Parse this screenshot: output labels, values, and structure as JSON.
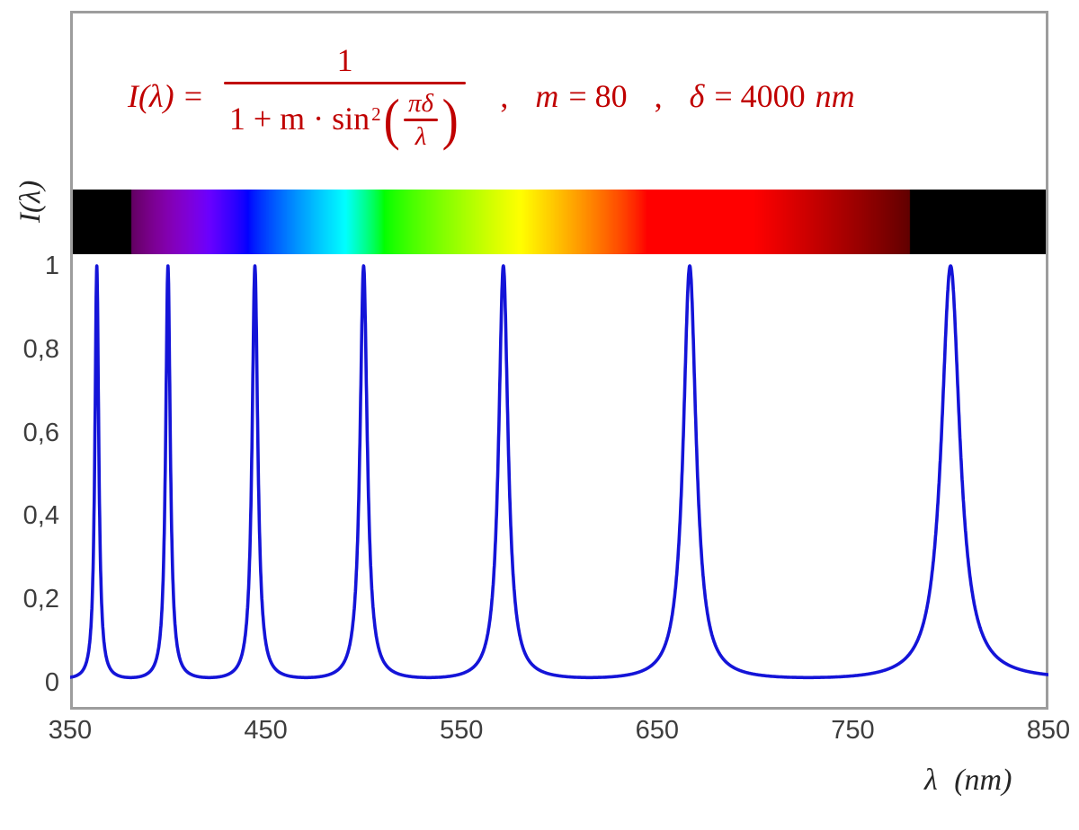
{
  "colors": {
    "formula_red": "#c00000",
    "curve_blue": "#1414d8",
    "frame_gray": "#9d9d9d",
    "tick_text": "#3d3d3d"
  },
  "formula": {
    "lhs_eq": "I(λ) =",
    "numerator": "1",
    "den_prefix": "1 + m · sin",
    "den_exponent": "2",
    "paren_left": "(",
    "paren_right": ")",
    "inner_numerator": "πδ",
    "inner_denominator": "λ",
    "comma_1": ",",
    "param_m_symbol": "m",
    "param_m_value": "= 80",
    "comma_2": ",",
    "param_delta_symbol": "δ",
    "param_delta_value": "= 4000",
    "param_delta_unit": "nm"
  },
  "chart_data": {
    "type": "line",
    "xlabel": "λ (nm)",
    "ylabel": "I(λ)",
    "x_range": [
      350,
      850
    ],
    "y_range": [
      0,
      1
    ],
    "grid": false,
    "legend": false,
    "x_ticks": [
      {
        "label": "350",
        "value": 350
      },
      {
        "label": "450",
        "value": 450
      },
      {
        "label": "550",
        "value": 550
      },
      {
        "label": "650",
        "value": 650
      },
      {
        "label": "750",
        "value": 750
      },
      {
        "label": "850",
        "value": 850
      }
    ],
    "y_ticks": [
      {
        "label": "0",
        "value": 0
      },
      {
        "label": "0,2",
        "value": 0.2
      },
      {
        "label": "0,4",
        "value": 0.4
      },
      {
        "label": "0,6",
        "value": 0.6
      },
      {
        "label": "0,8",
        "value": 0.8
      },
      {
        "label": "1",
        "value": 1
      }
    ],
    "series": [
      {
        "name": "I(λ)",
        "type": "function",
        "color": "#1414d8",
        "formula_text": "I(λ) = 1 / (1 + m·sin²(πδ/λ))",
        "parameters": {
          "m": 80,
          "delta_nm": 4000
        },
        "peak_wavelengths_nm": [
          363.6,
          400,
          444.4,
          500,
          571.4,
          666.7,
          800
        ],
        "peak_value": 1,
        "baseline_value": 0.0123
      }
    ],
    "spectrum_bar": {
      "lambda_min": 350,
      "lambda_max": 850,
      "visible_min_nm": 380,
      "visible_max_nm": 780
    }
  }
}
